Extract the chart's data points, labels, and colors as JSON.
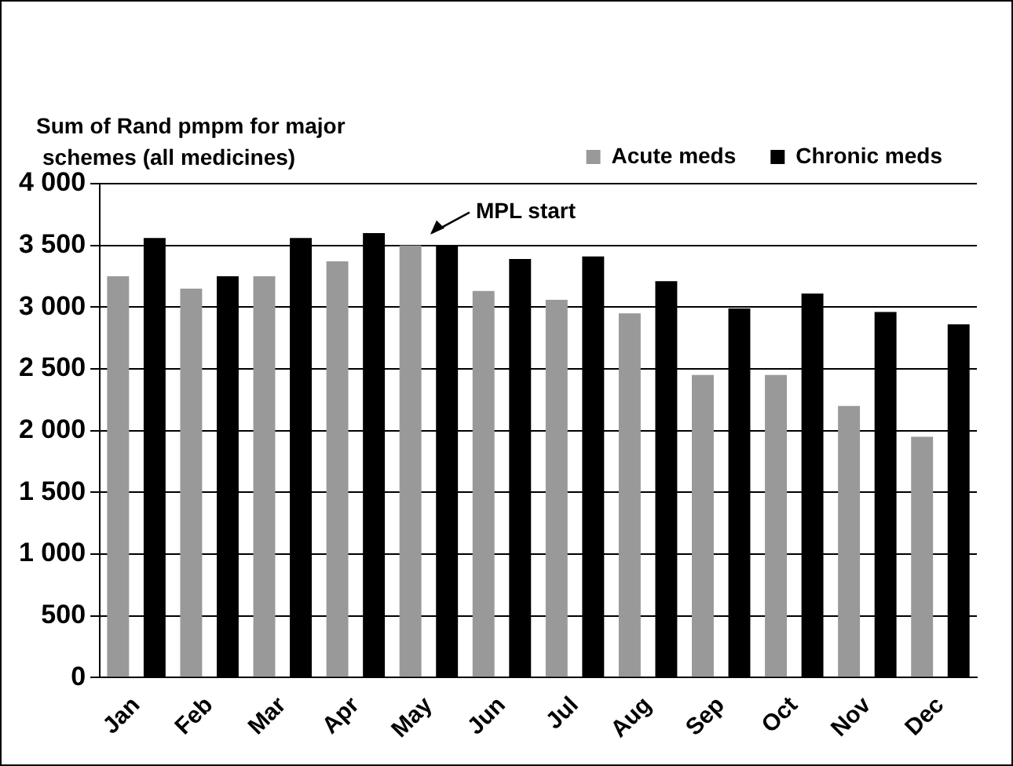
{
  "chart_data": {
    "type": "bar",
    "ylabel": "Sum of Rand pmpm for major schemes (all medicines)",
    "categories": [
      "Jan",
      "Feb",
      "Mar",
      "Apr",
      "May",
      "Jun",
      "Jul",
      "Aug",
      "Sep",
      "Oct",
      "Nov",
      "Dec"
    ],
    "series": [
      {
        "name": "Acute meds",
        "color": "#999999",
        "values": [
          3250,
          3150,
          3250,
          3370,
          3500,
          3130,
          3060,
          2950,
          2450,
          2450,
          2200,
          1950
        ]
      },
      {
        "name": "Chronic meds",
        "color": "#000000",
        "values": [
          3560,
          3250,
          3560,
          3600,
          3500,
          3390,
          3410,
          3210,
          2990,
          3110,
          2960,
          2860
        ]
      }
    ],
    "ylim": [
      0,
      4000
    ],
    "yticks": [
      {
        "value": 0,
        "label": "0"
      },
      {
        "value": 500,
        "label": "500"
      },
      {
        "value": 1000,
        "label": "1 000"
      },
      {
        "value": 1500,
        "label": "1 500"
      },
      {
        "value": 2000,
        "label": "2 000"
      },
      {
        "value": 2500,
        "label": "2 500"
      },
      {
        "value": 3000,
        "label": "3 000"
      },
      {
        "value": 3500,
        "label": "3 500"
      },
      {
        "value": 4000,
        "label": "4 000"
      }
    ],
    "grid": "y",
    "legend": "top right",
    "annotations": [
      {
        "text": "MPL start",
        "x": "May",
        "y": 3500
      }
    ]
  }
}
